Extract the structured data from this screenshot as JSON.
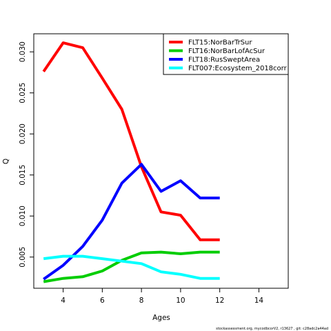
{
  "chart_data": {
    "type": "line",
    "xlabel": "Ages",
    "ylabel": "Q",
    "xlim": [
      2.5,
      15.5
    ],
    "ylim": [
      0.0012,
      0.0322
    ],
    "xticks": [
      4,
      6,
      8,
      10,
      12,
      14
    ],
    "yticks": [
      0.005,
      0.01,
      0.015,
      0.02,
      0.025,
      0.03
    ],
    "ytick_labels": [
      "0.005",
      "0.010",
      "0.015",
      "0.020",
      "0.025",
      "0.030"
    ],
    "legend_position": "top-right",
    "grid": false,
    "x": [
      3,
      4,
      5,
      6,
      7,
      8,
      9,
      10,
      11,
      12
    ],
    "series": [
      {
        "name": "FLT15:NorBarTrSur",
        "color": "#ff0000",
        "values": [
          0.0276,
          0.0311,
          0.0305,
          0.0268,
          0.023,
          0.016,
          0.0105,
          0.0101,
          0.0071,
          0.0071
        ]
      },
      {
        "name": "FLT16:NorBarLofAcSur",
        "color": "#00cd00",
        "values": [
          0.002,
          0.0024,
          0.0026,
          0.0033,
          0.0046,
          0.0055,
          0.0056,
          0.0054,
          0.0056,
          0.0056
        ]
      },
      {
        "name": "FLT18:RusSweptArea",
        "color": "#0000ff",
        "values": [
          0.0023,
          0.004,
          0.0063,
          0.0095,
          0.014,
          0.0163,
          0.013,
          0.0143,
          0.0122,
          0.0122
        ]
      },
      {
        "name": "FLT007:Ecosystem_2018corr",
        "color": "#00ffff",
        "values": [
          0.0048,
          0.0051,
          0.0051,
          0.0048,
          0.0045,
          0.0042,
          0.0032,
          0.0029,
          0.0024,
          0.0024
        ]
      }
    ]
  },
  "footnote": "stockassessment.org, mycodbcorV2, r13627 , git: c28adc2a44ad"
}
